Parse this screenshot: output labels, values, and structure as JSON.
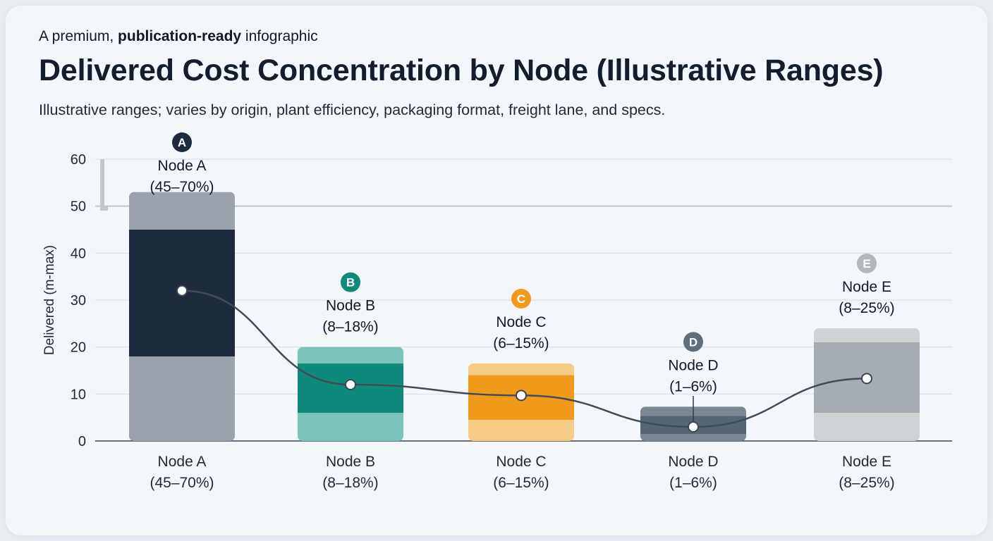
{
  "header": {
    "eyebrow_prefix": "A premium, ",
    "eyebrow_bold": "publication-ready",
    "eyebrow_suffix": " infographic",
    "title": "Delivered Cost Concentration by Node (Illustrative Ranges)",
    "subtitle": "Illustrative ranges; varies by origin, plant efficiency, packaging format, freight lane, and specs."
  },
  "chart_data": {
    "type": "bar",
    "ylabel": "Delivered (m-max)",
    "ylim": [
      0,
      60
    ],
    "yticks": [
      0,
      10,
      20,
      30,
      40,
      50,
      60
    ],
    "grid": true,
    "categories": [
      {
        "badge": "A",
        "name": "Node A",
        "range_label": "(45–70%)",
        "outer_low": 0,
        "outer_high": 53,
        "inner_low": 18,
        "inner_high": 45,
        "point": 32,
        "color": "#1e2b3e",
        "light": "#9ba2ac",
        "badge_color": "#1e2b3e"
      },
      {
        "badge": "B",
        "name": "Node B",
        "range_label": "(8–18%)",
        "outer_low": 0,
        "outer_high": 20,
        "inner_low": 6,
        "inner_high": 16.5,
        "point": 12,
        "color": "#0f8a7a",
        "light": "#7cc3b9",
        "badge_color": "#0f8a7a"
      },
      {
        "badge": "C",
        "name": "Node C",
        "range_label": "(6–15%)",
        "outer_low": 0,
        "outer_high": 16.5,
        "inner_low": 4.5,
        "inner_high": 14,
        "point": 9.7,
        "color": "#ef9a1a",
        "light": "#f5cb86",
        "badge_color": "#ef9a1a"
      },
      {
        "badge": "D",
        "name": "Node D",
        "range_label": "(1–6%)",
        "outer_low": 0,
        "outer_high": 7.3,
        "inner_low": 1.5,
        "inner_high": 5.3,
        "point": 3,
        "color": "#546673",
        "light": "#7b8894",
        "badge_color": "#5e6e7a"
      },
      {
        "badge": "E",
        "name": "Node E",
        "range_label": "(8–25%)",
        "outer_low": 0,
        "outer_high": 24,
        "inner_low": 6,
        "inner_high": 21,
        "point": 13.3,
        "color": "#a5acb2",
        "light": "#cfd3d7",
        "badge_color": "#b3b8bd"
      }
    ],
    "trend_color": "#414b57"
  }
}
